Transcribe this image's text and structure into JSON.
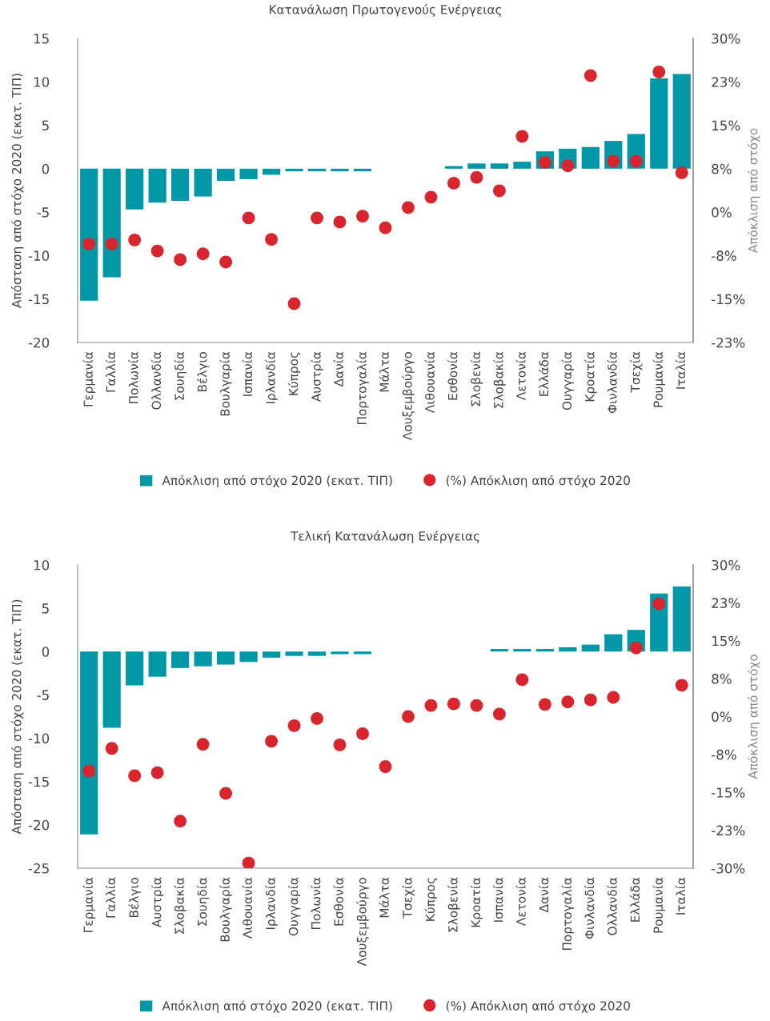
{
  "chart_data": [
    {
      "type": "bar",
      "title": "Κατανάλωση Πρωτογενούς Ενέργειας",
      "ylabel": "Απόσταση από στόχο 2020 (εκατ. ΤΙΠ)",
      "y2label": "Απόκλιση από στόχο",
      "categories": [
        "Γερμανία",
        "Γαλλία",
        "Πολωνία",
        "Ολλανδία",
        "Σουηδία",
        "Βέλγιο",
        "Βουλγαρία",
        "Ισπανία",
        "Ιρλανδία",
        "Κύπρος",
        "Αυστρία",
        "Δανία",
        "Πορτογαλία",
        "Μάλτα",
        "Λουξεμβούργο",
        "Λιθουανία",
        "Εσθονία",
        "Σλοβενία",
        "Σλοβακία",
        "Λετονία",
        "Ελλάδα",
        "Ουγγαρία",
        "Κροατία",
        "Φινλανδία",
        "Τσεχία",
        "Ρουμανία",
        "Ιταλία"
      ],
      "series": [
        {
          "name": "Απόκλιση από στόχο 2020 (εκατ. ΤΙΠ)",
          "color": "#0097a7",
          "values": [
            -15.2,
            -12.5,
            -4.7,
            -3.9,
            -3.7,
            -3.2,
            -1.4,
            -1.2,
            -0.7,
            -0.3,
            -0.3,
            -0.3,
            -0.3,
            0,
            0,
            0,
            0.3,
            0.6,
            0.6,
            0.8,
            2.0,
            2.3,
            2.5,
            3.2,
            4.0,
            10.4,
            10.9
          ]
        },
        {
          "name": "(%) Απόκλιση από στόχο 2020",
          "type": "scatter",
          "axis": "y2",
          "color": "#d9262e",
          "values": [
            -5.5,
            -5.5,
            -4.8,
            -6.7,
            -8.2,
            -7.2,
            -8.6,
            -1.0,
            -4.7,
            -15.8,
            -1.0,
            -1.7,
            -0.7,
            -2.7,
            0.8,
            2.6,
            5.0,
            6.0,
            3.7,
            13.1,
            8.6,
            8.0,
            23.6,
            8.8,
            8.8,
            24.2,
            6.8
          ]
        }
      ],
      "ylim": [
        -20,
        15
      ],
      "yticks": [
        -20,
        -15,
        -10,
        -5,
        0,
        5,
        10,
        15
      ],
      "y2lim": [
        -22.5,
        30
      ],
      "y2ticks": [
        {
          "value": -22.5,
          "label": "-23%"
        },
        {
          "value": -15,
          "label": "-15%"
        },
        {
          "value": -7.5,
          "label": "-8%"
        },
        {
          "value": 0,
          "label": "0%"
        },
        {
          "value": 7.5,
          "label": "8%"
        },
        {
          "value": 15,
          "label": "15%"
        },
        {
          "value": 22.5,
          "label": "23%"
        },
        {
          "value": 30,
          "label": "30%"
        }
      ],
      "grid": false,
      "legend": "bottom",
      "marker": "circle"
    },
    {
      "type": "bar",
      "title": "Τελική Κατανάλωση Ενέργειας",
      "ylabel": "Απόσταση από στόχο 2020 (εκατ. ΤΙΠ)",
      "y2label": "Απόκλιση από στόχο",
      "categories": [
        "Γερμανία",
        "Γαλλία",
        "Βέλγιο",
        "Αυστρία",
        "Σλοβακία",
        "Σουηδία",
        "Βουλγαρία",
        "Λιθουανία",
        "Ιρλανδία",
        "Ουγγαρία",
        "Πολωνία",
        "Εσθονία",
        "Λουξεμβούργο",
        "Μάλτα",
        "Τσεχία",
        "Κύπρος",
        "Σλοβενία",
        "Κροατία",
        "Ισπανία",
        "Λετονία",
        "Δανία",
        "Πορτογαλία",
        "Φινλανδία",
        "Ολλανδία",
        "Ελλάδα",
        "Ρουμανία",
        "Ιταλία"
      ],
      "series": [
        {
          "name": "Απόκλιση από στόχο 2020 (εκατ. ΤΙΠ)",
          "color": "#0097a7",
          "values": [
            -21.1,
            -8.8,
            -3.9,
            -2.9,
            -1.9,
            -1.7,
            -1.5,
            -1.2,
            -0.7,
            -0.5,
            -0.5,
            -0.3,
            -0.3,
            0,
            0,
            0,
            0,
            0,
            0.3,
            0.3,
            0.3,
            0.5,
            0.8,
            2.0,
            2.5,
            6.7,
            7.5
          ]
        },
        {
          "name": "(%) Απόκλιση από στόχο 2020",
          "type": "scatter",
          "axis": "y2",
          "color": "#d9262e",
          "values": [
            -10.8,
            -6.3,
            -11.7,
            -11.1,
            -20.7,
            -5.5,
            -15.2,
            -29.0,
            -4.9,
            -1.8,
            -0.4,
            -5.6,
            -3.4,
            -9.9,
            0.0,
            2.2,
            2.5,
            2.2,
            0.5,
            7.3,
            2.4,
            2.9,
            3.3,
            3.8,
            13.6,
            22.3,
            6.2
          ]
        }
      ],
      "ylim": [
        -25,
        10
      ],
      "yticks": [
        -25,
        -20,
        -15,
        -10,
        -5,
        0,
        5,
        10
      ],
      "y2lim": [
        -30,
        30
      ],
      "y2ticks": [
        {
          "value": -30,
          "label": "-30%"
        },
        {
          "value": -22.5,
          "label": "-23%"
        },
        {
          "value": -15,
          "label": "-15%"
        },
        {
          "value": -7.5,
          "label": "-8%"
        },
        {
          "value": 0,
          "label": "0%"
        },
        {
          "value": 7.5,
          "label": "8%"
        },
        {
          "value": 15,
          "label": "15%"
        },
        {
          "value": 22.5,
          "label": "23%"
        },
        {
          "value": 30,
          "label": "30%"
        }
      ],
      "grid": false,
      "legend": "bottom",
      "marker": "circle"
    }
  ]
}
